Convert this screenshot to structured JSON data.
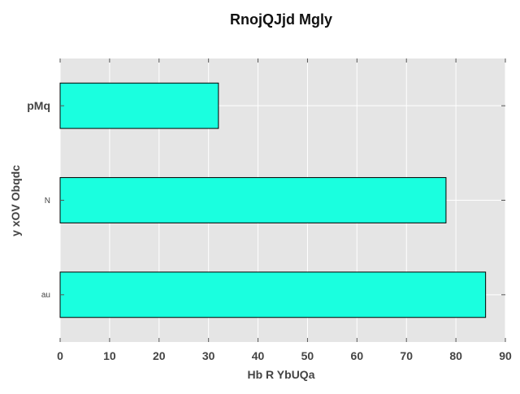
{
  "chart_data": {
    "type": "bar",
    "orientation": "horizontal",
    "title": "RnojQJjd Mgly",
    "xlabel": "Hb R YbUQa",
    "ylabel": "y xOV Obqdc",
    "categories": [
      "pMq",
      "N",
      "au"
    ],
    "values": [
      32,
      78,
      86
    ],
    "xlim": [
      0,
      90
    ],
    "xticks": [
      0,
      10,
      20,
      30,
      40,
      50,
      60,
      70,
      80,
      90
    ],
    "grid": true,
    "legend": "none",
    "colors": {
      "bar": "#1affdf",
      "bar_edge": "#000000",
      "plot_background": "#e5e5e5",
      "grid": "#ffffff",
      "text": "#444444",
      "title": "#111111"
    }
  }
}
